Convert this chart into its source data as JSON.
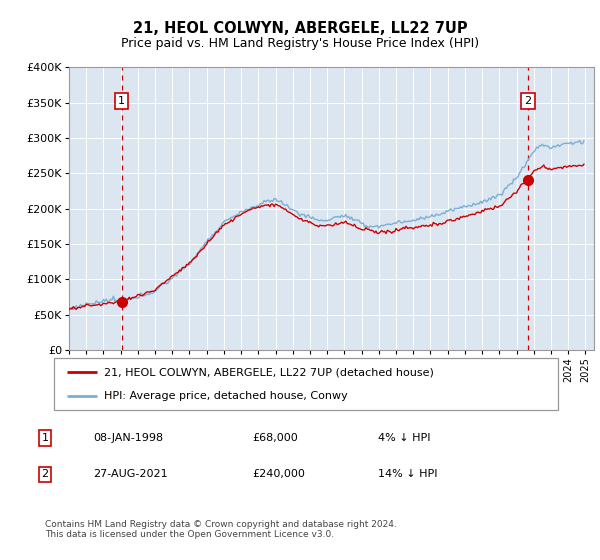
{
  "title": "21, HEOL COLWYN, ABERGELE, LL22 7UP",
  "subtitle": "Price paid vs. HM Land Registry's House Price Index (HPI)",
  "legend_line1": "21, HEOL COLWYN, ABERGELE, LL22 7UP (detached house)",
  "legend_line2": "HPI: Average price, detached house, Conwy",
  "annotation1": {
    "num": "1",
    "date": "08-JAN-1998",
    "price": "£68,000",
    "pct": "4% ↓ HPI"
  },
  "annotation2": {
    "num": "2",
    "date": "27-AUG-2021",
    "price": "£240,000",
    "pct": "14% ↓ HPI"
  },
  "footer": "Contains HM Land Registry data © Crown copyright and database right 2024.\nThis data is licensed under the Open Government Licence v3.0.",
  "sale1": {
    "year": 1998.05,
    "price": 68000
  },
  "sale2": {
    "year": 2021.65,
    "price": 240000
  },
  "hpi_color": "#7bafd4",
  "sale_color": "#cc0000",
  "bg_color": "#dce6f1",
  "vline_color": "#cc0000",
  "ylim": [
    0,
    400000
  ],
  "xlim": [
    1995.0,
    2025.5
  ],
  "yticks": [
    0,
    50000,
    100000,
    150000,
    200000,
    250000,
    300000,
    350000,
    400000
  ],
  "ylabels": [
    "£0",
    "£50K",
    "£100K",
    "£150K",
    "£200K",
    "£250K",
    "£300K",
    "£350K",
    "£400K"
  ]
}
